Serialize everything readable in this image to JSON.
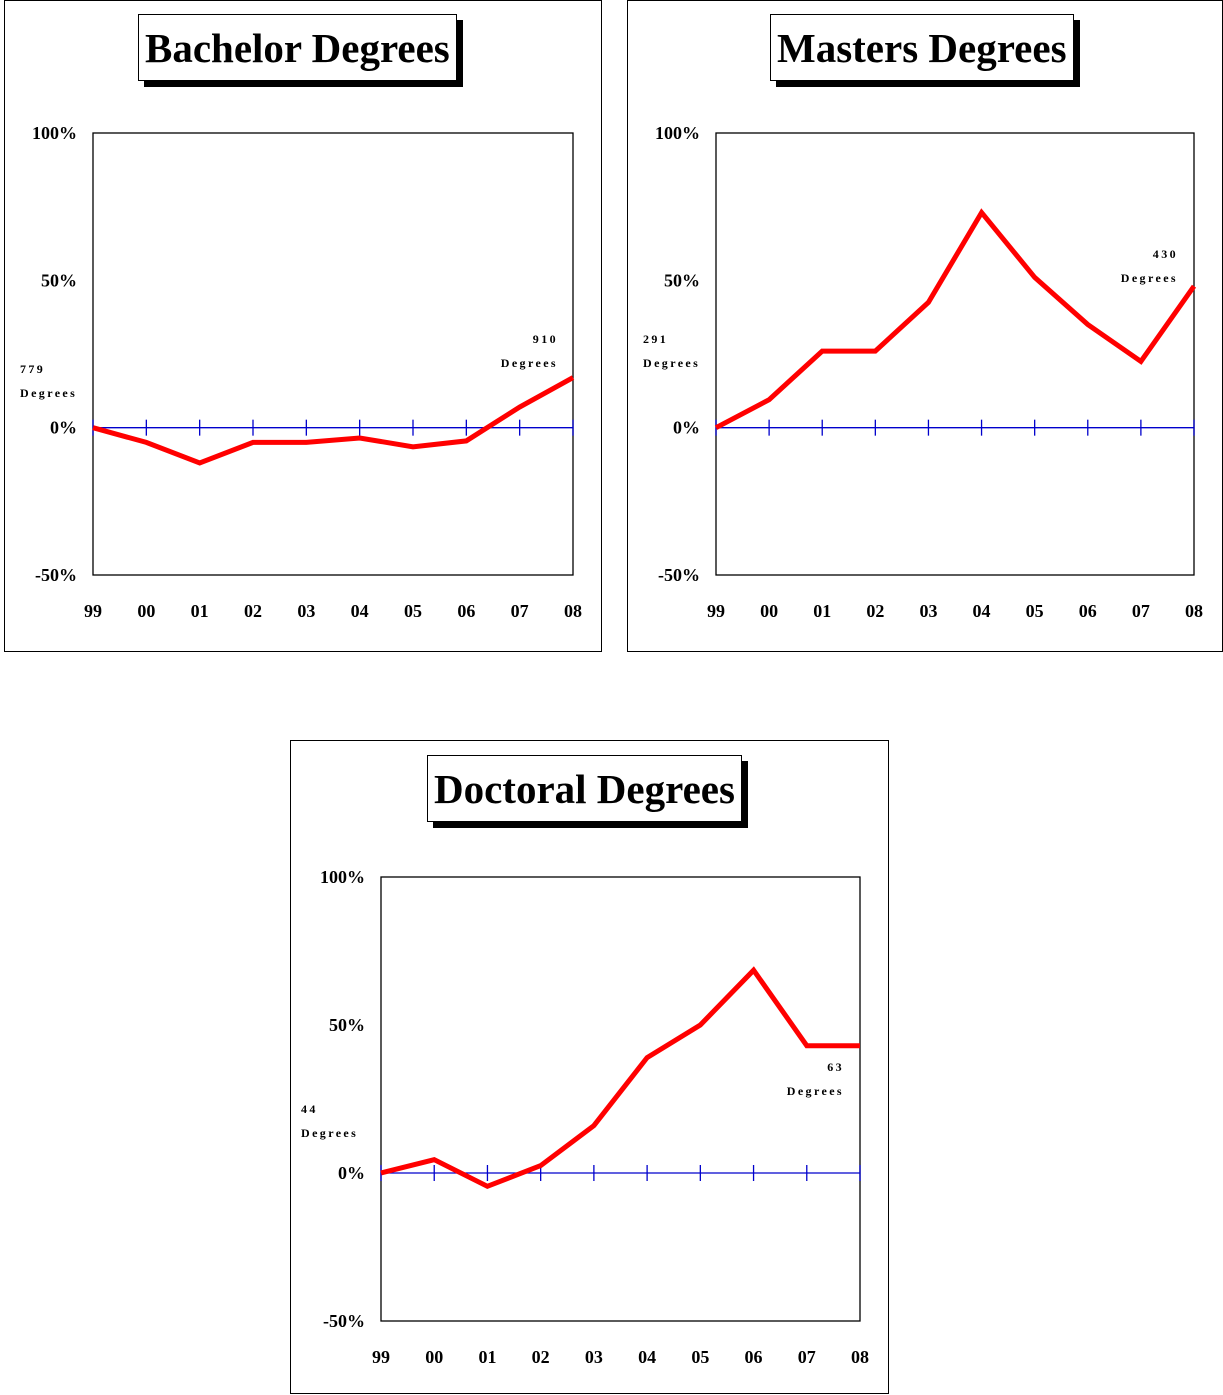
{
  "colors": {
    "series": "#ff0000",
    "baseline": "#0000cc",
    "frame": "#000000"
  },
  "chart_data": [
    {
      "type": "line",
      "title": "Bachelor Degrees",
      "x": [
        "99",
        "00",
        "01",
        "02",
        "03",
        "04",
        "05",
        "06",
        "07",
        "08"
      ],
      "y_ticks": [
        "100%",
        "50%",
        "0%",
        "-50%"
      ],
      "ylim": [
        -50,
        100
      ],
      "series": [
        {
          "values": [
            0,
            -5,
            -12,
            -5,
            -5,
            -3.5,
            -6.5,
            -4.5,
            7,
            17
          ]
        }
      ],
      "annotations": [
        {
          "value": "779",
          "label": "Degrees",
          "anchor": "start",
          "at": "99"
        },
        {
          "value": "910",
          "label": "Degrees",
          "anchor": "end",
          "at": "08"
        }
      ],
      "grid": false
    },
    {
      "type": "line",
      "title": "Masters Degrees",
      "x": [
        "99",
        "00",
        "01",
        "02",
        "03",
        "04",
        "05",
        "06",
        "07",
        "08"
      ],
      "y_ticks": [
        "100%",
        "50%",
        "0%",
        "-50%"
      ],
      "ylim": [
        -50,
        100
      ],
      "series": [
        {
          "values": [
            0,
            9.5,
            26,
            26,
            42.5,
            73,
            51,
            35,
            22.5,
            48
          ]
        }
      ],
      "annotations": [
        {
          "value": "291",
          "label": "Degrees",
          "anchor": "start",
          "at": "99"
        },
        {
          "value": "430",
          "label": "Degrees",
          "anchor": "end",
          "at": "08"
        }
      ],
      "grid": false
    },
    {
      "type": "line",
      "title": "Doctoral Degrees",
      "x": [
        "99",
        "00",
        "01",
        "02",
        "03",
        "04",
        "05",
        "06",
        "07",
        "08"
      ],
      "y_ticks": [
        "100%",
        "50%",
        "0%",
        "-50%"
      ],
      "ylim": [
        -50,
        100
      ],
      "series": [
        {
          "values": [
            0,
            4.5,
            -4.5,
            2.5,
            16,
            39,
            50,
            68.5,
            43,
            43
          ]
        }
      ],
      "annotations": [
        {
          "value": "44",
          "label": "Degrees",
          "anchor": "start",
          "at": "99"
        },
        {
          "value": "63",
          "label": "Degrees",
          "anchor": "end",
          "at": "08"
        }
      ],
      "grid": false
    }
  ]
}
